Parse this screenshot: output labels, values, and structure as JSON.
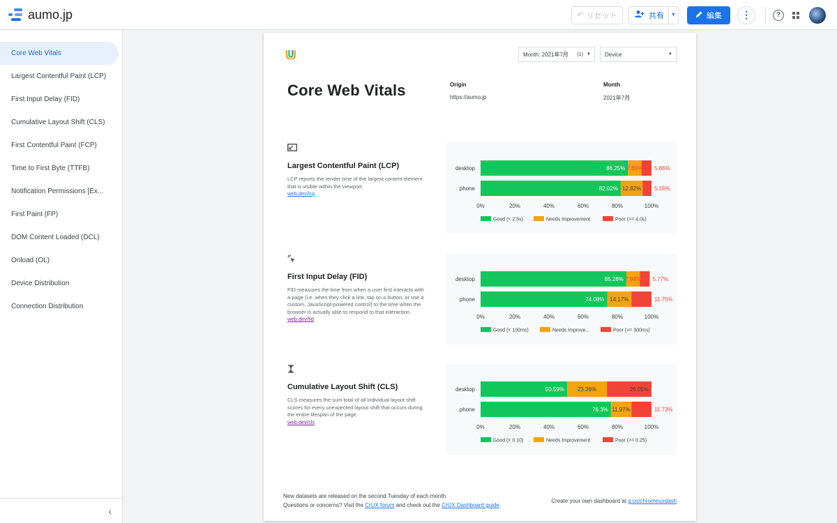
{
  "app": {
    "title": "aumo.jp"
  },
  "toolbar": {
    "reset_label": "リセット",
    "share_label": "共有",
    "edit_label": "編集"
  },
  "sidebar": {
    "items": [
      {
        "label": "Core Web Vitals",
        "active": true
      },
      {
        "label": "Largest Contentful Paint (LCP)"
      },
      {
        "label": "First Input Delay (FID)"
      },
      {
        "label": "Cumulative Layout Shift (CLS)"
      },
      {
        "label": "First Contentful Paint (FCP)"
      },
      {
        "label": "Time to First Byte (TTFB)"
      },
      {
        "label": "Notification Permissions [Ex..."
      },
      {
        "label": "First Paint (FP)"
      },
      {
        "label": "DOM Content Loaded (DCL)"
      },
      {
        "label": "Onload (OL)"
      },
      {
        "label": "Device Distribution"
      },
      {
        "label": "Connection Distribution"
      }
    ]
  },
  "report": {
    "controls": {
      "month_label": "Month: 2021年7月",
      "month_count": "(1)",
      "device_label": "Device"
    },
    "title": "Core Web Vitals",
    "origin_label": "Origin",
    "origin_value": "https://aumo.jp",
    "month_label": "Month",
    "month_value": "2021年7月",
    "metrics": [
      {
        "title": "Largest Contentful Paint (LCP)",
        "desc": "LCP reports the render time of the largest content element that is visible within the viewport.",
        "link": "web.dev/lcp"
      },
      {
        "title": "First Input Delay (FID)",
        "desc": "FID measures the time from when a user first interacts with a page (i.e. when they click a link, tap on a button, or use a custom, JavaScript-powered control) to the time when the browser is actually able to respond to that interaction.",
        "link": "web.dev/fid"
      },
      {
        "title": "Cumulative Layout Shift (CLS)",
        "desc": "CLS measures the sum total of all individual layout shift scores for every unexpected layout shift that occurs during the entire lifespan of the page.",
        "link": "web.dev/cls"
      }
    ],
    "footer": {
      "line1": "New datasets are released on the second Tuesday of each month.",
      "line2_pre": "Questions or concerns? Visit the ",
      "line2_link1": "CrUX forum",
      "line2_mid": " and check out the ",
      "line2_link2": "CrUX Dashboard guide",
      "line2_post": ".",
      "right_pre": "Create your own dashboard at ",
      "right_link": "g.co/chromeuxdash"
    }
  },
  "colors": {
    "good": "#12c65b",
    "needs": "#f5a30e",
    "poor": "#f04438",
    "accent": "#1a73e8"
  },
  "chart_data": [
    {
      "type": "bar",
      "orientation": "horizontal-stacked",
      "categories": [
        "desktop",
        "phone"
      ],
      "series": [
        {
          "name": "Good (< 2.5s)",
          "values": [
            86.25,
            82.02
          ],
          "labels": [
            "86.25%",
            "82.02%"
          ]
        },
        {
          "name": "Needs Improvement",
          "values": [
            7.89,
            12.82
          ],
          "labels": [
            "7.89%",
            "12.82%"
          ]
        },
        {
          "name": "Poor (>= 4.0s)",
          "values": [
            5.86,
            5.16
          ],
          "labels": [
            "5.86%",
            "5.16%"
          ]
        }
      ],
      "ticks": [
        "0%",
        "20%",
        "40%",
        "60%",
        "80%",
        "100%"
      ],
      "xlim": [
        0,
        100
      ],
      "legend": "bottom"
    },
    {
      "type": "bar",
      "orientation": "horizontal-stacked",
      "categories": [
        "desktop",
        "phone"
      ],
      "series": [
        {
          "name": "Good (< 100ms)",
          "values": [
            85.28,
            74.08
          ],
          "labels": [
            "85.28%",
            "74.08%"
          ]
        },
        {
          "name": "Needs Improve...",
          "values": [
            7.94,
            14.17
          ],
          "labels": [
            "7.94%",
            "14.17%"
          ]
        },
        {
          "name": "Poor (>= 300ms)",
          "values": [
            5.77,
            11.75
          ],
          "labels": [
            "5.77%",
            "11.75%"
          ]
        }
      ],
      "ticks": [
        "0%",
        "20%",
        "40%",
        "60%",
        "80%",
        "100%"
      ],
      "xlim": [
        0,
        100
      ],
      "legend": "bottom"
    },
    {
      "type": "bar",
      "orientation": "horizontal-stacked",
      "categories": [
        "desktop",
        "phone"
      ],
      "series": [
        {
          "name": "Good (< 0.10)",
          "values": [
            50.59,
            76.3
          ],
          "labels": [
            "50.59%",
            "76.3%"
          ]
        },
        {
          "name": "Needs Improvement",
          "values": [
            23.36,
            11.97
          ],
          "labels": [
            "23.36%",
            "11.97%"
          ]
        },
        {
          "name": "Poor (>= 0.25)",
          "values": [
            26.05,
            11.73
          ],
          "labels": [
            "26.05%",
            "11.73%"
          ]
        }
      ],
      "ticks": [
        "0%",
        "20%",
        "40%",
        "60%",
        "80%",
        "100%"
      ],
      "xlim": [
        0,
        100
      ],
      "legend": "bottom"
    }
  ]
}
